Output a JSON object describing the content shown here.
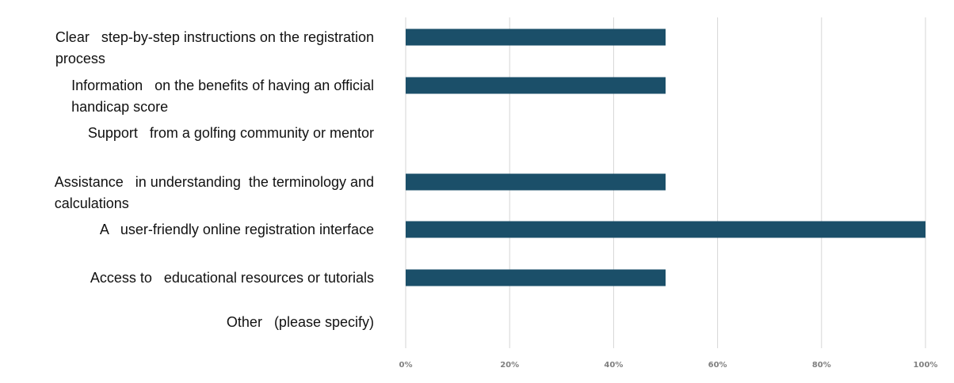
{
  "chart_data": {
    "type": "bar",
    "orientation": "horizontal",
    "categories": [
      [
        "Clear   step-by-step instructions on the registration",
        "process"
      ],
      [
        "Information   on the benefits of having an official",
        "handicap score"
      ],
      [
        "Support   from a golfing community or mentor"
      ],
      [
        "Assistance   in understanding  the terminology and",
        "calculations"
      ],
      [
        "A   user-friendly online registration interface"
      ],
      [
        "Access to   educational resources or tutorials"
      ],
      [
        "Other   (please specify)"
      ]
    ],
    "values": [
      50,
      50,
      0,
      50,
      100,
      50,
      0
    ],
    "x_ticks": [
      "0%",
      "20%",
      "40%",
      "60%",
      "80%",
      "100%"
    ],
    "xlim": [
      0,
      100
    ],
    "grid": true,
    "legend": "none",
    "title": "",
    "xlabel": "",
    "ylabel": "",
    "colors": {
      "bar": "#1b4f69",
      "grid": "#d6d6d6",
      "tick_text": "#808080",
      "label_text": "#111111"
    }
  }
}
